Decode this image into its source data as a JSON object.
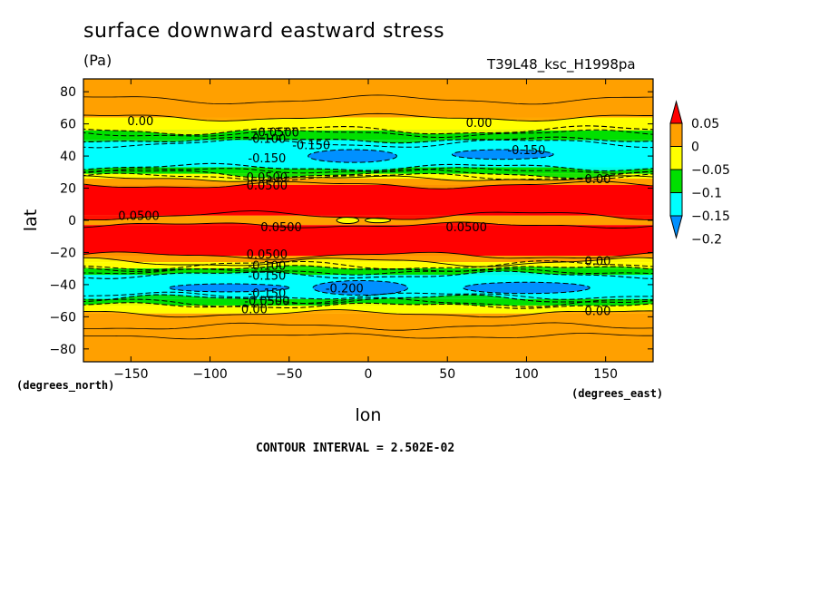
{
  "header": {
    "title": "surface downward eastward stress",
    "units": "(Pa)",
    "run_id": "T39L48_ksc_H1998pa"
  },
  "footer": {
    "contour_interval": "CONTOUR INTERVAL = 2.502E-02"
  },
  "chart_data": {
    "type": "heatmap",
    "xlabel": "lon",
    "ylabel": "lat",
    "x_units_label": "(degrees_east)",
    "y_units_label": "(degrees_north)",
    "xlim": [
      -180,
      180
    ],
    "ylim": [
      -88,
      88
    ],
    "x_ticks": [
      -150,
      -100,
      -50,
      0,
      50,
      100,
      150
    ],
    "y_ticks": [
      -80,
      -60,
      -40,
      -20,
      0,
      20,
      40,
      60,
      80
    ],
    "colorbar": {
      "labels": [
        "0.05",
        "0",
        "-0.05",
        "-0.1",
        "-0.15",
        "-0.2"
      ],
      "levels": [
        0.05,
        0,
        -0.05,
        -0.1,
        -0.15,
        -0.2
      ],
      "colors": [
        "#ff0000",
        "#ffa000",
        "#ffff00",
        "#00e000",
        "#00ffff",
        "#0090ff"
      ],
      "extend": "both"
    },
    "zonal_bands": [
      {
        "lat_from": 88,
        "lat_to": 64,
        "color": "#ffa000"
      },
      {
        "lat_from": 64,
        "lat_to": 56,
        "color": "#ffff00"
      },
      {
        "lat_from": 56,
        "lat_to": 50,
        "color": "#00e000"
      },
      {
        "lat_from": 50,
        "lat_to": 33,
        "color": "#00ffff"
      },
      {
        "lat_from": 33,
        "lat_to": 29,
        "color": "#00e000"
      },
      {
        "lat_from": 29,
        "lat_to": 26,
        "color": "#ffff00"
      },
      {
        "lat_from": 26,
        "lat_to": 22,
        "color": "#ffa000"
      },
      {
        "lat_from": 22,
        "lat_to": 3,
        "color": "#ff0000"
      },
      {
        "lat_from": 3,
        "lat_to": -3,
        "color": "#ffa000"
      },
      {
        "lat_from": -3,
        "lat_to": -22,
        "color": "#ff0000"
      },
      {
        "lat_from": -22,
        "lat_to": -26,
        "color": "#ffa000"
      },
      {
        "lat_from": -26,
        "lat_to": -30,
        "color": "#ffff00"
      },
      {
        "lat_from": -30,
        "lat_to": -34,
        "color": "#00e000"
      },
      {
        "lat_from": -34,
        "lat_to": -49,
        "color": "#00ffff"
      },
      {
        "lat_from": -49,
        "lat_to": -53,
        "color": "#00e000"
      },
      {
        "lat_from": -53,
        "lat_to": -58,
        "color": "#ffff00"
      },
      {
        "lat_from": -58,
        "lat_to": -88,
        "color": "#ffa000"
      }
    ],
    "patches": [
      {
        "lon": -10,
        "lat": 40,
        "rlon": 28,
        "rlat": 4,
        "color": "#0090ff"
      },
      {
        "lon": 85,
        "lat": 41,
        "rlon": 32,
        "rlat": 3,
        "color": "#0090ff"
      },
      {
        "lon": -5,
        "lat": -42,
        "rlon": 30,
        "rlat": 4.5,
        "color": "#0090ff"
      },
      {
        "lon": 100,
        "lat": -42,
        "rlon": 40,
        "rlat": 3.5,
        "color": "#0090ff"
      },
      {
        "lon": -88,
        "lat": -42,
        "rlon": 38,
        "rlat": 2.5,
        "color": "#0090ff"
      },
      {
        "lon": -13,
        "lat": 0,
        "rlon": 7,
        "rlat": 2,
        "color": "#ffff00"
      },
      {
        "lon": 6,
        "lat": 0,
        "rlon": 8,
        "rlat": 1.5,
        "color": "#ffff00"
      }
    ],
    "contour_labels": [
      {
        "text": "0.00",
        "lon": -144,
        "lat": 62
      },
      {
        "text": "0.00",
        "lon": 70,
        "lat": 61
      },
      {
        "text": "-0.0500",
        "lon": -58,
        "lat": 55
      },
      {
        "text": "-0.100",
        "lon": -64,
        "lat": 51
      },
      {
        "text": "-0.150",
        "lon": -36,
        "lat": 47
      },
      {
        "text": "-0.150",
        "lon": 100,
        "lat": 44
      },
      {
        "text": "-0.150",
        "lon": -64,
        "lat": 39
      },
      {
        "text": "0.0500",
        "lon": -64,
        "lat": 27
      },
      {
        "text": "0.0500",
        "lon": -64,
        "lat": 22
      },
      {
        "text": "0.00",
        "lon": 145,
        "lat": 26
      },
      {
        "text": "0.0500",
        "lon": -145,
        "lat": 3
      },
      {
        "text": "0.0500",
        "lon": -55,
        "lat": -4
      },
      {
        "text": "0.0500",
        "lon": 62,
        "lat": -4
      },
      {
        "text": "0.0500",
        "lon": -64,
        "lat": -21
      },
      {
        "text": "0.00",
        "lon": 145,
        "lat": -25
      },
      {
        "text": "-0.100",
        "lon": -64,
        "lat": -28
      },
      {
        "text": "-0.150",
        "lon": -64,
        "lat": -34
      },
      {
        "text": "-0.200",
        "lon": -15,
        "lat": -42
      },
      {
        "text": "-0.150",
        "lon": -64,
        "lat": -45
      },
      {
        "text": "-0.0500",
        "lon": -64,
        "lat": -50
      },
      {
        "text": "0.00",
        "lon": -72,
        "lat": -55
      },
      {
        "text": "0.00",
        "lon": 145,
        "lat": -56
      }
    ]
  }
}
